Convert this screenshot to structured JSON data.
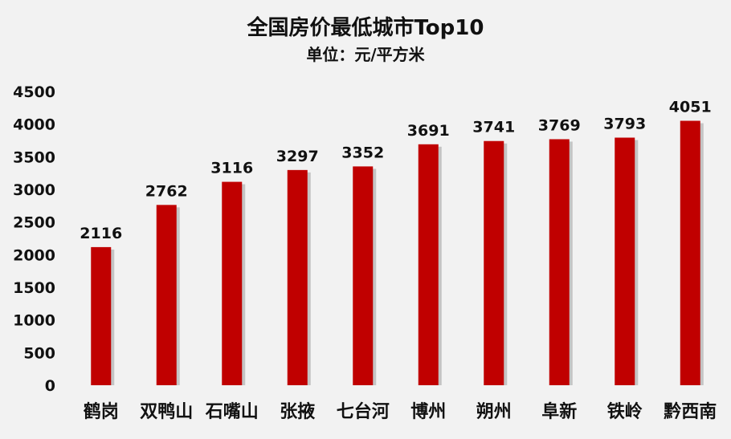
{
  "chart_data": {
    "type": "bar",
    "title": "全国房价最低城市Top10",
    "subtitle": "单位：元/平方米",
    "categories": [
      "鹤岗",
      "双鸭山",
      "石嘴山",
      "张掖",
      "七台河",
      "博州",
      "朔州",
      "阜新",
      "铁岭",
      "黔西南"
    ],
    "values": [
      2116,
      2762,
      3116,
      3297,
      3352,
      3691,
      3741,
      3769,
      3793,
      4051
    ],
    "ylim": [
      0,
      4500
    ],
    "yticks": [
      0,
      500,
      1000,
      1500,
      2000,
      2500,
      3000,
      3500,
      4000,
      4500
    ],
    "grid": false,
    "bar_color": "#c00000",
    "shadow_color": "#b0b0b0"
  }
}
